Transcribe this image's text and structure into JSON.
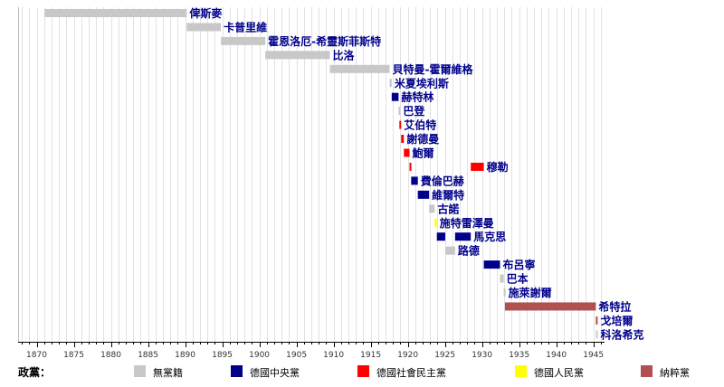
{
  "chart_data": {
    "type": "timeline",
    "xlim": [
      1867.5,
      1946.5
    ],
    "x_ticks": [
      1870,
      1875,
      1880,
      1885,
      1890,
      1895,
      1900,
      1905,
      1910,
      1915,
      1920,
      1925,
      1930,
      1935,
      1940,
      1945
    ],
    "grid": true,
    "colors": {
      "none": "#c8c8c8",
      "centre": "#00008b",
      "spd": "#ff0000",
      "dvp": "#ffff00",
      "nsdap": "#b05050"
    },
    "legend": {
      "title": "政黨：",
      "placement": "bottom",
      "items": [
        {
          "key": "none",
          "label": "無黨籍"
        },
        {
          "key": "centre",
          "label": "德國中央黨"
        },
        {
          "key": "spd",
          "label": "德國社會民主黨"
        },
        {
          "key": "dvp",
          "label": "德國人民黨"
        },
        {
          "key": "nsdap",
          "label": "納粹黨"
        }
      ]
    },
    "chancellors": [
      {
        "name": "俾斯麥",
        "segments": [
          {
            "start": 1871.05,
            "end": 1890.22,
            "party": "none"
          }
        ]
      },
      {
        "name": "卡普里維",
        "segments": [
          {
            "start": 1890.22,
            "end": 1894.82,
            "party": "none"
          }
        ]
      },
      {
        "name": "霍恩洛厄-希靈斯菲斯特",
        "segments": [
          {
            "start": 1894.82,
            "end": 1900.8,
            "party": "none"
          }
        ]
      },
      {
        "name": "比洛",
        "segments": [
          {
            "start": 1900.8,
            "end": 1909.5,
            "party": "none"
          }
        ]
      },
      {
        "name": "貝特曼-霍爾維格",
        "segments": [
          {
            "start": 1909.5,
            "end": 1917.55,
            "party": "none"
          }
        ]
      },
      {
        "name": "米夏埃利斯",
        "segments": [
          {
            "start": 1917.55,
            "end": 1917.83,
            "party": "none"
          }
        ]
      },
      {
        "name": "赫特林",
        "segments": [
          {
            "start": 1917.83,
            "end": 1918.75,
            "party": "centre"
          }
        ]
      },
      {
        "name": "巴登",
        "segments": [
          {
            "start": 1918.75,
            "end": 1918.86,
            "party": "none"
          }
        ]
      },
      {
        "name": "艾伯特",
        "segments": [
          {
            "start": 1918.86,
            "end": 1919.1,
            "party": "spd"
          }
        ]
      },
      {
        "name": "謝德曼",
        "segments": [
          {
            "start": 1919.1,
            "end": 1919.47,
            "party": "spd"
          }
        ]
      },
      {
        "name": "鮑爾",
        "segments": [
          {
            "start": 1919.47,
            "end": 1920.23,
            "party": "spd"
          }
        ]
      },
      {
        "name": "穆勒",
        "segments": [
          {
            "start": 1920.23,
            "end": 1920.45,
            "party": "spd"
          },
          {
            "start": 1928.48,
            "end": 1930.24,
            "party": "spd"
          }
        ]
      },
      {
        "name": "費倫巴赫",
        "segments": [
          {
            "start": 1920.45,
            "end": 1921.35,
            "party": "centre"
          }
        ]
      },
      {
        "name": "維爾特",
        "segments": [
          {
            "start": 1921.35,
            "end": 1922.87,
            "party": "centre"
          }
        ]
      },
      {
        "name": "古諾",
        "segments": [
          {
            "start": 1922.87,
            "end": 1923.62,
            "party": "none"
          }
        ]
      },
      {
        "name": "施特雷澤曼",
        "segments": [
          {
            "start": 1923.62,
            "end": 1923.91,
            "party": "dvp"
          }
        ]
      },
      {
        "name": "馬克思",
        "segments": [
          {
            "start": 1923.91,
            "end": 1925.04,
            "party": "centre"
          },
          {
            "start": 1926.37,
            "end": 1928.48,
            "party": "centre"
          }
        ]
      },
      {
        "name": "路德",
        "segments": [
          {
            "start": 1925.04,
            "end": 1926.37,
            "party": "none"
          }
        ]
      },
      {
        "name": "布呂寧",
        "segments": [
          {
            "start": 1930.24,
            "end": 1932.42,
            "party": "centre"
          }
        ]
      },
      {
        "name": "巴本",
        "segments": [
          {
            "start": 1932.42,
            "end": 1932.92,
            "party": "none"
          }
        ]
      },
      {
        "name": "施萊謝爾",
        "segments": [
          {
            "start": 1932.92,
            "end": 1933.08,
            "party": "none"
          }
        ]
      },
      {
        "name": "希特拉",
        "segments": [
          {
            "start": 1933.08,
            "end": 1945.33,
            "party": "nsdap"
          }
        ]
      },
      {
        "name": "戈培爾",
        "segments": [
          {
            "start": 1945.33,
            "end": 1945.34,
            "party": "nsdap"
          }
        ]
      },
      {
        "name": "科洛希克",
        "segments": [
          {
            "start": 1945.34,
            "end": 1945.4,
            "party": "none"
          }
        ]
      }
    ]
  }
}
